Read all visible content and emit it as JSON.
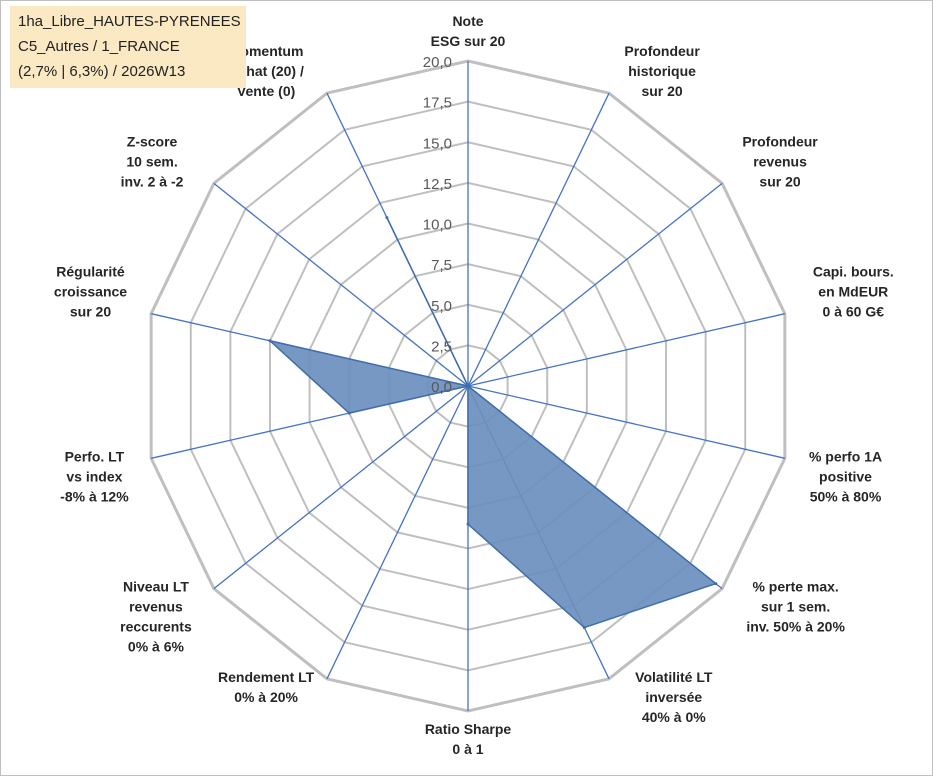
{
  "header": {
    "line1": "1ha_Libre_HAUTES-PYRENEES",
    "line2": "C5_Autres / 1_FRANCE",
    "line3": "(2,7% | 6,3%) / 2026W13"
  },
  "chart_data": {
    "type": "radar",
    "title": "",
    "rlim": [
      0,
      20
    ],
    "ticks": [
      "0,0",
      "2,5",
      "5,0",
      "7,5",
      "10,0",
      "12,5",
      "15,0",
      "17,5",
      "20,0"
    ],
    "axes": [
      {
        "label": [
          "Note",
          "ESG sur 20"
        ]
      },
      {
        "label": [
          "Profondeur",
          "historique",
          "sur 20"
        ]
      },
      {
        "label": [
          "Profondeur",
          "revenus",
          "sur 20"
        ]
      },
      {
        "label": [
          "Capi. bours.",
          "en MdEUR",
          "0 à 60 G€"
        ]
      },
      {
        "label": [
          "% perfo 1A",
          "positive",
          "50% à 80%"
        ]
      },
      {
        "label": [
          "% perte max.",
          "sur 1 sem.",
          "inv. 50% à 20%"
        ]
      },
      {
        "label": [
          "Volatilité LT",
          "inversée",
          "40% à 0%"
        ]
      },
      {
        "label": [
          "Ratio Sharpe",
          "0 à 1"
        ]
      },
      {
        "label": [
          "Rendement LT",
          "0% à 20%"
        ]
      },
      {
        "label": [
          "Niveau LT",
          "revenus",
          "reccurents",
          "0% à 6%"
        ]
      },
      {
        "label": [
          "Perfo. LT",
          "vs index",
          "-8% à 12%"
        ]
      },
      {
        "label": [
          "Régularité",
          "croissance",
          "sur 20"
        ]
      },
      {
        "label": [
          "Z-score",
          "10 sem.",
          "inv. 2 à -2"
        ]
      },
      {
        "label": [
          "Momentum",
          "Achat (20) /",
          "Vente (0)"
        ]
      }
    ],
    "series": [
      {
        "values": [
          0,
          0,
          0,
          0,
          0,
          19.5,
          16.5,
          8.5,
          0,
          0,
          7.5,
          12.5,
          0,
          11.5
        ]
      }
    ],
    "colors": {
      "fill": "#6a8fbd",
      "stroke": "#3e6dac",
      "axis": "#4472c4",
      "grid": "#bfbfbf"
    },
    "grid": true,
    "legend": "none"
  }
}
